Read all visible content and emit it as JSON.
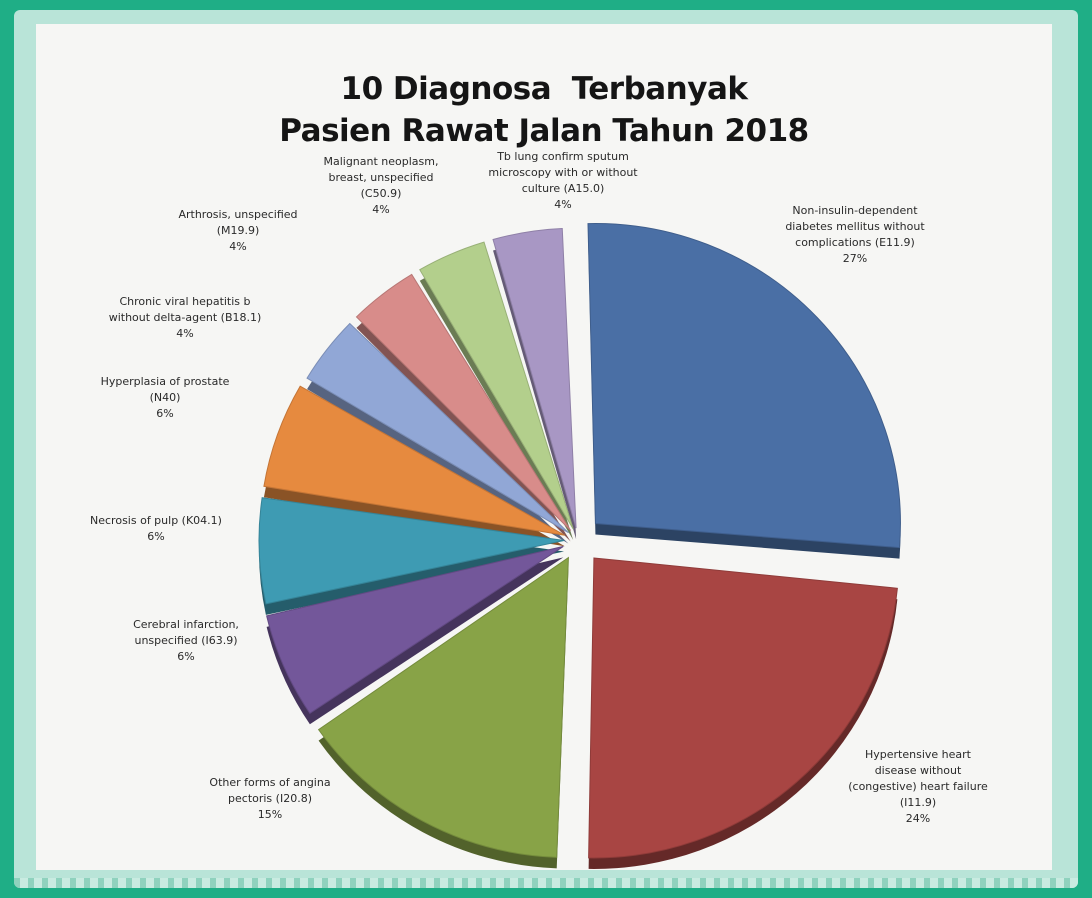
{
  "chart_data": {
    "type": "pie",
    "title_lines": [
      "10 Diagnosa  Terbanyak",
      "Pasien Rawat Jalan Tahun 2018"
    ],
    "slices": [
      {
        "label_lines": [
          "Non-insulin-dependent",
          "diabetes mellitus without",
          "complications (E11.9)"
        ],
        "value_label": "27%",
        "value": 27,
        "color": "#4a6fa5"
      },
      {
        "label_lines": [
          "Hypertensive heart",
          "disease without",
          "(congestive) heart failure",
          "(I11.9)"
        ],
        "value_label": "24%",
        "value": 24,
        "color": "#a84543"
      },
      {
        "label_lines": [
          "Other forms of angina",
          "pectoris (I20.8)"
        ],
        "value_label": "15%",
        "value": 15,
        "color": "#88a347"
      },
      {
        "label_lines": [
          "Cerebral infarction,",
          "unspecified (I63.9)"
        ],
        "value_label": "6%",
        "value": 6,
        "color": "#73579a"
      },
      {
        "label_lines": [
          "Necrosis of pulp (K04.1)"
        ],
        "value_label": "6%",
        "value": 6,
        "color": "#3e9bb3"
      },
      {
        "label_lines": [
          "Hyperplasia of prostate",
          "(N40)"
        ],
        "value_label": "6%",
        "value": 6,
        "color": "#e68a3f"
      },
      {
        "label_lines": [
          "Chronic viral hepatitis b",
          "without delta-agent (B18.1)"
        ],
        "value_label": "4%",
        "value": 4,
        "color": "#91a7d6"
      },
      {
        "label_lines": [
          "Arthrosis, unspecified",
          "(M19.9)"
        ],
        "value_label": "4%",
        "value": 4,
        "color": "#d88c8a"
      },
      {
        "label_lines": [
          "Malignant neoplasm,",
          "breast, unspecified",
          "(C50.9)"
        ],
        "value_label": "4%",
        "value": 4,
        "color": "#b3cf8c"
      },
      {
        "label_lines": [
          "Tb lung confirm sputum",
          "microscopy with or without",
          "culture (A15.0)"
        ],
        "value_label": "4%",
        "value": 4,
        "color": "#a897c4"
      }
    ]
  }
}
